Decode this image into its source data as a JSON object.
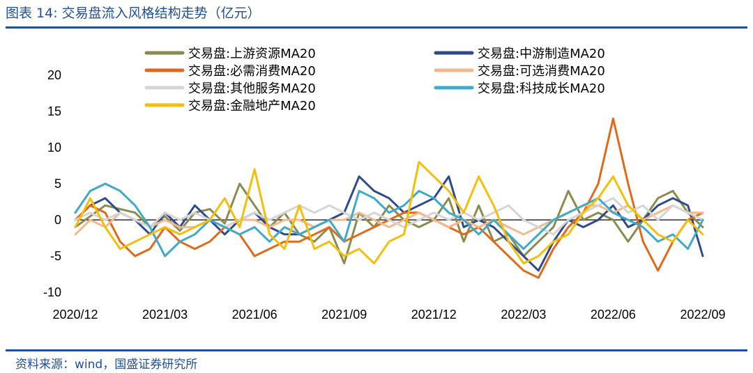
{
  "header": {
    "title": "图表 14:  交易盘流入风格结构走势（亿元）"
  },
  "footer": {
    "source": "资料来源：wind，国盛证券研究所"
  },
  "chart_data": {
    "type": "line",
    "title": "交易盘流入风格结构走势（亿元）",
    "ylabel": "亿元",
    "xlabel": "",
    "ylim": [
      -10,
      20
    ],
    "yticks": [
      -10,
      -5,
      0,
      5,
      10,
      15,
      20
    ],
    "ytick_labels": [
      "-10",
      "-5",
      "0",
      "5",
      "10",
      "15",
      "20"
    ],
    "xlim": [
      0,
      21
    ],
    "xticks": [
      0,
      3,
      6,
      9,
      12,
      15,
      18,
      21
    ],
    "xtick_labels": [
      "2020/12",
      "2021/03",
      "2021/06",
      "2021/09",
      "2021/12",
      "2022/03",
      "2022/06",
      "2022/09"
    ],
    "legend_position": "top",
    "series": [
      {
        "name": "交易盘:上游资源MA20",
        "color": "#8B8B4E",
        "x": [
          0,
          0.5,
          1,
          1.5,
          2,
          2.5,
          3,
          3.5,
          4,
          4.5,
          5,
          5.5,
          6,
          6.5,
          7,
          7.5,
          8,
          8.5,
          9,
          9.5,
          10,
          10.5,
          11,
          11.5,
          12,
          12.5,
          13,
          13.5,
          14,
          14.5,
          15,
          15.5,
          16,
          16.5,
          17,
          17.5,
          18,
          18.5,
          19,
          19.5,
          20,
          20.5,
          21
        ],
        "y": [
          -1,
          0.5,
          2,
          1.5,
          1,
          -1,
          0.5,
          -1.5,
          1,
          1.5,
          -0.5,
          5,
          2,
          -1,
          1,
          -2,
          -3,
          -1,
          -6,
          1,
          -1,
          2,
          0,
          -1,
          0,
          3,
          -3,
          2,
          -3,
          -2,
          -5,
          -3,
          -1,
          4,
          0,
          1,
          0,
          -3,
          0,
          3,
          4,
          1,
          -1
        ]
      },
      {
        "name": "交易盘:中游制造MA20",
        "color": "#2E4A8F",
        "x": [
          0,
          0.5,
          1,
          1.5,
          2,
          2.5,
          3,
          3.5,
          4,
          4.5,
          5,
          5.5,
          6,
          6.5,
          7,
          7.5,
          8,
          8.5,
          9,
          9.5,
          10,
          10.5,
          11,
          11.5,
          12,
          12.5,
          13,
          13.5,
          14,
          14.5,
          15,
          15.5,
          16,
          16.5,
          17,
          17.5,
          18,
          18.5,
          19,
          19.5,
          20,
          20.5,
          21
        ],
        "y": [
          0,
          2,
          3,
          1,
          0,
          -2,
          1,
          -1,
          2,
          0,
          -2,
          0,
          1,
          -1,
          -2,
          -2,
          -1,
          0,
          1,
          6,
          4,
          3,
          1,
          2,
          3,
          6,
          -1,
          0,
          -1,
          -3,
          -5,
          -7,
          -3,
          0,
          -1,
          0,
          2,
          -1,
          0,
          2,
          3,
          2,
          -5
        ]
      },
      {
        "name": "交易盘:必需消费MA20",
        "color": "#E06A1A",
        "x": [
          0,
          0.5,
          1,
          1.5,
          2,
          2.5,
          3,
          3.5,
          4,
          4.5,
          5,
          5.5,
          6,
          6.5,
          7,
          7.5,
          8,
          8.5,
          9,
          9.5,
          10,
          10.5,
          11,
          11.5,
          12,
          12.5,
          13,
          13.5,
          14,
          14.5,
          15,
          15.5,
          16,
          16.5,
          17,
          17.5,
          18,
          18.5,
          19,
          19.5,
          20,
          20.5,
          21
        ],
        "y": [
          0,
          2,
          1,
          -3,
          -5,
          -4,
          -1,
          -3,
          -4,
          -3,
          -1,
          -2,
          -5,
          -4,
          -3,
          -3,
          -2,
          -1,
          -3,
          -2,
          -1,
          0,
          1,
          1,
          0,
          -1,
          -2,
          -1,
          -3,
          -5,
          -7,
          -8,
          -4,
          -1,
          1,
          5,
          14,
          5,
          -3,
          -7,
          -3,
          0,
          1
        ]
      },
      {
        "name": "交易盘:可选消费MA20",
        "color": "#F5B88C",
        "x": [
          0,
          0.5,
          1,
          1.5,
          2,
          2.5,
          3,
          3.5,
          4,
          4.5,
          5,
          5.5,
          6,
          6.5,
          7,
          7.5,
          8,
          8.5,
          9,
          9.5,
          10,
          10.5,
          11,
          11.5,
          12,
          12.5,
          13,
          13.5,
          14,
          14.5,
          15,
          15.5,
          16,
          16.5,
          17,
          17.5,
          18,
          18.5,
          19,
          19.5,
          20,
          20.5,
          21
        ],
        "y": [
          -2,
          0,
          -1,
          1,
          0,
          -1,
          0,
          -1,
          -1,
          0,
          -1,
          0,
          0,
          -1,
          0,
          0,
          -1,
          0,
          0,
          1,
          0,
          -1,
          0,
          1,
          0,
          -1,
          0,
          -1,
          0,
          -1,
          -2,
          -1,
          0,
          1,
          2,
          2,
          1,
          2,
          0,
          1,
          2,
          1,
          1
        ]
      },
      {
        "name": "交易盘:其他服务MA20",
        "color": "#D5D5D5",
        "x": [
          0,
          0.5,
          1,
          1.5,
          2,
          2.5,
          3,
          3.5,
          4,
          4.5,
          5,
          5.5,
          6,
          6.5,
          7,
          7.5,
          8,
          8.5,
          9,
          9.5,
          10,
          10.5,
          11,
          11.5,
          12,
          12.5,
          13,
          13.5,
          14,
          14.5,
          15,
          15.5,
          16,
          16.5,
          17,
          17.5,
          18,
          18.5,
          19,
          19.5,
          20,
          20.5,
          21
        ],
        "y": [
          0,
          1,
          0,
          1,
          0,
          -1,
          1,
          0,
          1,
          0,
          -1,
          0,
          1,
          0,
          1,
          2,
          1,
          2,
          1,
          0,
          1,
          0,
          -1,
          0,
          1,
          0,
          1,
          0,
          1,
          2,
          0,
          -1,
          -2,
          0,
          1,
          2,
          3,
          1,
          2,
          0,
          2,
          1,
          0
        ]
      },
      {
        "name": "交易盘:科技成长MA20",
        "color": "#3FA9C9",
        "x": [
          0,
          0.5,
          1,
          1.5,
          2,
          2.5,
          3,
          3.5,
          4,
          4.5,
          5,
          5.5,
          6,
          6.5,
          7,
          7.5,
          8,
          8.5,
          9,
          9.5,
          10,
          10.5,
          11,
          11.5,
          12,
          12.5,
          13,
          13.5,
          14,
          14.5,
          15,
          15.5,
          16,
          16.5,
          17,
          17.5,
          18,
          18.5,
          19,
          19.5,
          20,
          20.5,
          21
        ],
        "y": [
          1,
          4,
          5,
          4,
          2,
          -1,
          -5,
          -3,
          -2,
          0,
          -1,
          -2,
          -1,
          -3,
          -1,
          -2,
          -1,
          0,
          -3,
          4,
          3,
          1,
          2,
          4,
          3,
          1,
          0,
          -2,
          0,
          -2,
          -4,
          -2,
          0,
          1,
          2,
          3,
          1,
          0,
          -1,
          -3,
          -2,
          -4,
          0
        ]
      },
      {
        "name": "交易盘:金融地产MA20",
        "color": "#F5BE0A",
        "x": [
          0,
          0.5,
          1,
          1.5,
          2,
          2.5,
          3,
          3.5,
          4,
          4.5,
          5,
          5.5,
          6,
          6.5,
          7,
          7.5,
          8,
          8.5,
          9,
          9.5,
          10,
          10.5,
          11,
          11.5,
          12,
          12.5,
          13,
          13.5,
          14,
          14.5,
          15,
          15.5,
          16,
          16.5,
          17,
          17.5,
          18,
          18.5,
          19,
          19.5,
          20,
          20.5,
          21
        ],
        "y": [
          -1,
          3,
          -1,
          -4,
          -3,
          -2,
          -1,
          -2,
          -1,
          0,
          3,
          -1,
          7,
          -2,
          -4,
          2,
          -4,
          -3,
          -5,
          -4,
          -6,
          -3,
          -2,
          8,
          6,
          4,
          1,
          6,
          2,
          -3,
          -6,
          -5,
          -3,
          -2,
          1,
          3,
          6,
          2,
          0,
          -2,
          -3,
          0,
          -2
        ]
      }
    ]
  }
}
